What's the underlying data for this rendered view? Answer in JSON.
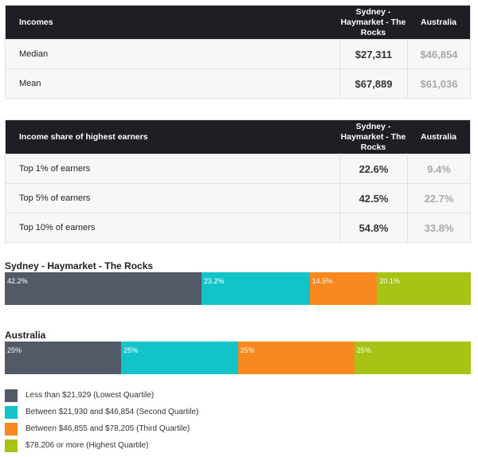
{
  "colors": {
    "q1": "#525a68",
    "q2": "#12c4c8",
    "q3": "#f7891e",
    "q4": "#a8c316"
  },
  "income_table": {
    "header": {
      "label": "Incomes",
      "region": "Sydney - Haymarket - The Rocks",
      "national": "Australia"
    },
    "rows": [
      {
        "label": "Median",
        "region": "$27,311",
        "national": "$46,854"
      },
      {
        "label": "Mean",
        "region": "$67,889",
        "national": "$61,036"
      }
    ]
  },
  "share_table": {
    "header": {
      "label": "Income share of highest earners",
      "region": "Sydney - Haymarket - The Rocks",
      "national": "Australia"
    },
    "rows": [
      {
        "label": "Top 1% of earners",
        "region": "22.6%",
        "national": "9.4%"
      },
      {
        "label": "Top 5% of earners",
        "region": "42.5%",
        "national": "22.7%"
      },
      {
        "label": "Top 10% of earners",
        "region": "54.8%",
        "national": "33.8%"
      }
    ]
  },
  "chart_data": [
    {
      "type": "bar",
      "title": "Sydney - Haymarket - The Rocks",
      "categories": [
        "Less than $21,929 (Lowest Quartile)",
        "Between $21,930 and $46,854 (Second Quartile)",
        "Between $46,855 and $78,205 (Third Quartile)",
        "$78,206 or more (Highest Quartile)"
      ],
      "values": [
        42.2,
        23.2,
        14.5,
        20.1
      ],
      "labels": [
        "42.2%",
        "23.2%",
        "14.5%",
        "20.1%"
      ]
    },
    {
      "type": "bar",
      "title": "Australia",
      "categories": [
        "Less than $21,929 (Lowest Quartile)",
        "Between $21,930 and $46,854 (Second Quartile)",
        "Between $46,855 and $78,205 (Third Quartile)",
        "$78,206 or more (Highest Quartile)"
      ],
      "values": [
        25,
        25,
        25,
        25
      ],
      "labels": [
        "25%",
        "25%",
        "25%",
        "25%"
      ]
    }
  ],
  "legend": [
    "Less than $21,929 (Lowest Quartile)",
    "Between $21,930 and $46,854 (Second Quartile)",
    "Between $46,855 and $78,205 (Third Quartile)",
    "$78,206 or more (Highest Quartile)"
  ]
}
